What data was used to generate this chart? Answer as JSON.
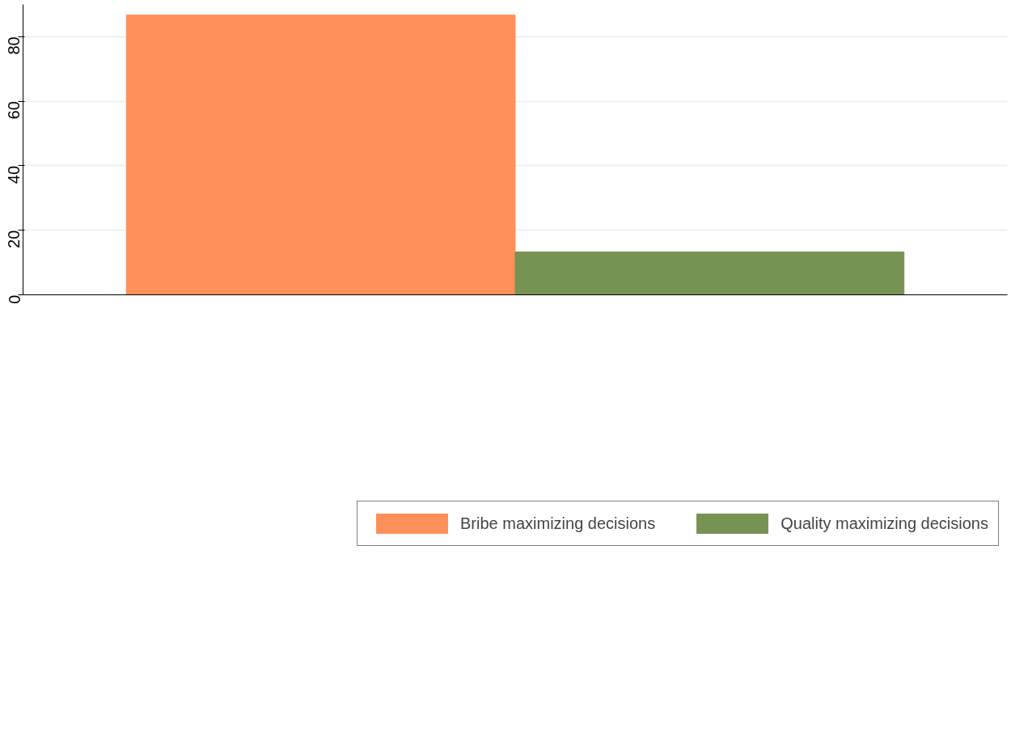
{
  "chart_data": {
    "type": "bar",
    "categories": [
      null
    ],
    "series": [
      {
        "name": "Bribe maximizing decisions",
        "color": "#ff8f5a",
        "values": [
          86.7
        ]
      },
      {
        "name": "Quality maximizing decisions",
        "color": "#779353",
        "values": [
          13.3
        ]
      }
    ],
    "ylim": [
      0,
      90
    ],
    "yticks": [
      0,
      20,
      40,
      60,
      80
    ],
    "grid": "y",
    "legend": "bottom"
  }
}
